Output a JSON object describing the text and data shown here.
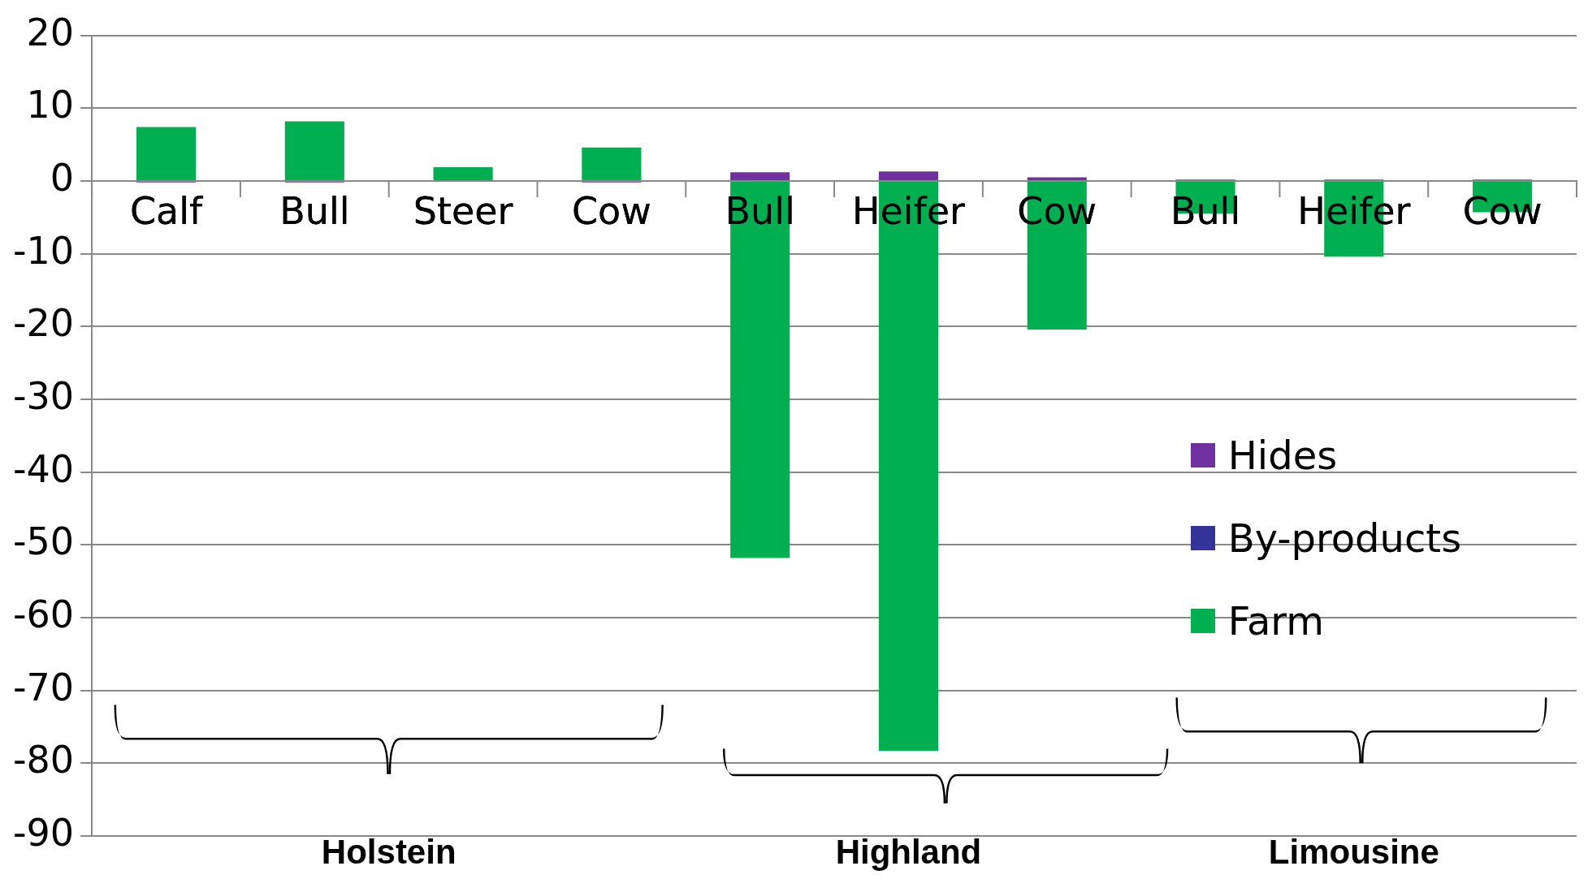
{
  "chart_data": {
    "type": "bar",
    "stacked": true,
    "categories": [
      "Calf",
      "Bull",
      "Steer",
      "Cow",
      "Bull",
      "Heifer",
      "Cow",
      "Bull",
      "Heifer",
      "Cow"
    ],
    "series": [
      {
        "name": "Farm",
        "color": "#00b050",
        "values": [
          7.4,
          8.2,
          1.9,
          4.6,
          -51.8,
          -78.3,
          -20.4,
          -4.5,
          -10.4,
          -4.3
        ]
      },
      {
        "name": "By-products",
        "color": "#333399",
        "values": [
          0,
          0,
          0,
          0,
          0,
          0,
          0,
          0,
          0,
          0
        ]
      },
      {
        "name": "Hides",
        "color": "#7030a0",
        "values": [
          -0.2,
          -0.2,
          0,
          -0.2,
          1.2,
          1.3,
          0.5,
          0.2,
          0.2,
          0.2
        ]
      }
    ],
    "ylim": [
      -90,
      20
    ],
    "yticks": [
      -90,
      -80,
      -70,
      -60,
      -50,
      -40,
      -30,
      -20,
      -10,
      0,
      10,
      20
    ],
    "grid": "y",
    "legend": "right",
    "annotations": [
      "Holstein",
      "Highland",
      "Limousine"
    ]
  }
}
